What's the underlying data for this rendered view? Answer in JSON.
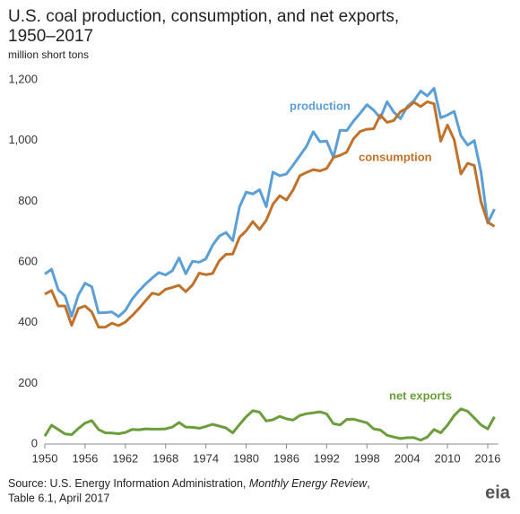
{
  "chart_data": {
    "type": "line",
    "title": [
      "U.S. coal production, consumption, and net exports,",
      "1950–2017"
    ],
    "subtitle": "million short tons",
    "x": [
      1950,
      1951,
      1952,
      1953,
      1954,
      1955,
      1956,
      1957,
      1958,
      1959,
      1960,
      1961,
      1962,
      1963,
      1964,
      1965,
      1966,
      1967,
      1968,
      1969,
      1970,
      1971,
      1972,
      1973,
      1974,
      1975,
      1976,
      1977,
      1978,
      1979,
      1980,
      1981,
      1982,
      1983,
      1984,
      1985,
      1986,
      1987,
      1988,
      1989,
      1990,
      1991,
      1992,
      1993,
      1994,
      1995,
      1996,
      1997,
      1998,
      1999,
      2000,
      2001,
      2002,
      2003,
      2004,
      2005,
      2006,
      2007,
      2008,
      2009,
      2010,
      2011,
      2012,
      2013,
      2014,
      2015,
      2016,
      2017
    ],
    "series": [
      {
        "name": "production",
        "color": "#5b9fd8",
        "values": [
          560,
          576,
          508,
          488,
          421,
          491,
          530,
          518,
          432,
          433,
          435,
          420,
          440,
          477,
          504,
          527,
          547,
          565,
          557,
          571,
          613,
          561,
          602,
          599,
          610,
          655,
          685,
          697,
          670,
          781,
          830,
          824,
          838,
          782,
          896,
          884,
          890,
          919,
          950,
          981,
          1029,
          996,
          998,
          945,
          1034,
          1033,
          1064,
          1090,
          1118,
          1100,
          1074,
          1128,
          1094,
          1072,
          1112,
          1131,
          1163,
          1147,
          1172,
          1075,
          1084,
          1096,
          1016,
          985,
          1000,
          897,
          728,
          774
        ]
      },
      {
        "name": "consumption",
        "color": "#c0722a",
        "values": [
          494,
          506,
          455,
          455,
          391,
          447,
          455,
          435,
          385,
          385,
          398,
          390,
          402,
          423,
          446,
          472,
          497,
          492,
          510,
          516,
          523,
          502,
          524,
          563,
          558,
          562,
          604,
          625,
          626,
          681,
          703,
          733,
          707,
          737,
          791,
          818,
          804,
          837,
          884,
          895,
          904,
          900,
          908,
          944,
          951,
          962,
          1006,
          1030,
          1037,
          1039,
          1084,
          1060,
          1066,
          1095,
          1107,
          1126,
          1112,
          1128,
          1121,
          998,
          1051,
          1003,
          890,
          925,
          918,
          798,
          731,
          717
        ]
      },
      {
        "name": "net exports",
        "color": "#6a9e3a",
        "values": [
          26,
          62,
          48,
          33,
          31,
          51,
          69,
          77,
          48,
          37,
          36,
          34,
          38,
          48,
          47,
          50,
          49,
          49,
          50,
          56,
          71,
          56,
          55,
          52,
          58,
          65,
          59,
          53,
          37,
          64,
          90,
          110,
          105,
          76,
          80,
          91,
          83,
          79,
          94,
          100,
          103,
          106,
          99,
          67,
          63,
          81,
          82,
          76,
          70,
          50,
          46,
          29,
          23,
          18,
          21,
          21,
          13,
          23,
          48,
          37,
          62,
          94,
          116,
          108,
          86,
          63,
          50,
          90
        ]
      }
    ],
    "xlim": [
      1950,
      2017
    ],
    "xticks": [
      1950,
      1956,
      1962,
      1968,
      1974,
      1980,
      1986,
      1992,
      1998,
      2004,
      2010,
      2016
    ],
    "ylim": [
      0,
      1200
    ],
    "yticks": [
      0,
      200,
      400,
      600,
      800,
      {
        "value": 1000,
        "label": "1,000"
      },
      {
        "value": 1200,
        "label": "1,200"
      }
    ],
    "grid": false,
    "source": {
      "prefix": "Source: U.S. Energy Information Administration, ",
      "italic": "Monthly Energy Review",
      "suffix": ",",
      "line2": "Table 6.1, April 2017"
    },
    "logo": "eia"
  }
}
